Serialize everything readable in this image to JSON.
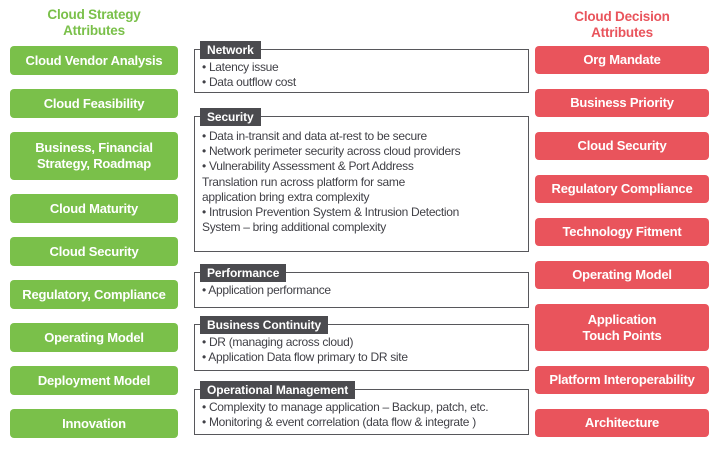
{
  "colors": {
    "green": "#7ac04a",
    "red": "#e9545c",
    "dark": "#4b4b4f",
    "line": "#57575b",
    "ink": "#414147"
  },
  "left_column": {
    "title": "Cloud Strategy\nAttributes",
    "items": [
      "Cloud Vendor Analysis",
      "Cloud Feasibility",
      "Business, Financial\nStrategy, Roadmap",
      "Cloud Maturity",
      "Cloud Security",
      "Regulatory, Compliance",
      "Operating Model",
      "Deployment Model",
      "Innovation"
    ]
  },
  "middle_column": {
    "groups": [
      {
        "title": "Network",
        "bullets": [
          "Latency issue",
          "Data outflow cost"
        ]
      },
      {
        "title": "Security",
        "bullets": [
          "Data in-transit and data at-rest to be secure",
          "Network perimeter security across cloud providers",
          "Vulnerability Assessment & Port Address\nTranslation run across platform for same\napplication bring extra complexity",
          "Intrusion Prevention System & Intrusion Detection\nSystem – bring additional complexity"
        ]
      },
      {
        "title": "Performance",
        "bullets": [
          "Application performance"
        ]
      },
      {
        "title": "Business Continuity",
        "bullets": [
          "DR (managing across cloud)",
          "Application Data flow primary to DR site"
        ]
      },
      {
        "title": "Operational Management",
        "bullets": [
          "Complexity to manage application – Backup, patch, etc.",
          "Monitoring & event correlation (data flow & integrate )"
        ]
      }
    ]
  },
  "right_column": {
    "title": "Cloud Decision\nAttributes",
    "items": [
      "Org Mandate",
      "Business Priority",
      "Cloud Security",
      "Regulatory Compliance",
      "Technology Fitment",
      "Operating Model",
      "Application\nTouch Points",
      "Platform Interoperability",
      "Architecture"
    ]
  }
}
